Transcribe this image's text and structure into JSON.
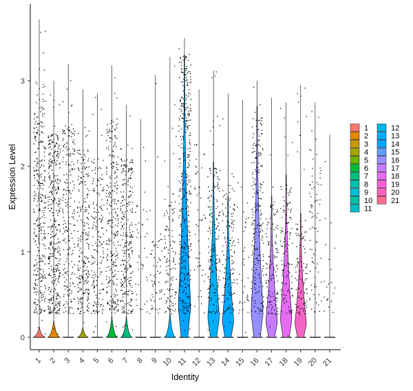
{
  "chart_data": {
    "type": "violin",
    "title": "",
    "xlabel": "Identity",
    "ylabel": "Expression Level",
    "ylim": [
      -0.2,
      3.9
    ],
    "yticks": [
      0,
      1,
      2,
      3
    ],
    "grid": false,
    "legend_position": "right",
    "categories": [
      "1",
      "2",
      "3",
      "4",
      "5",
      "6",
      "7",
      "8",
      "9",
      "10",
      "11",
      "12",
      "13",
      "14",
      "15",
      "16",
      "17",
      "18",
      "19",
      "20",
      "21"
    ],
    "series": [
      {
        "name": "1",
        "color": "#F8766D",
        "max": 3.72,
        "point_density": 0.85,
        "point_top": 2.8,
        "violin_width": 0.42,
        "violin_height": 0.12,
        "violin_shape": "low"
      },
      {
        "name": "2",
        "color": "#E58700",
        "max": 3.0,
        "point_density": 1.0,
        "point_top": 2.4,
        "violin_width": 0.43,
        "violin_height": 0.2,
        "violin_shape": "low"
      },
      {
        "name": "3",
        "color": "#C99800",
        "max": 3.2,
        "point_density": 0.55,
        "point_top": 2.5,
        "violin_width": 0.0,
        "violin_height": 0.0,
        "violin_shape": "flat"
      },
      {
        "name": "4",
        "color": "#A3A500",
        "max": 2.9,
        "point_density": 0.6,
        "point_top": 2.2,
        "violin_width": 0.35,
        "violin_height": 0.12,
        "violin_shape": "low"
      },
      {
        "name": "5",
        "color": "#6BB100",
        "max": 2.85,
        "point_density": 0.45,
        "point_top": 2.1,
        "violin_width": 0.0,
        "violin_height": 0.0,
        "violin_shape": "flat"
      },
      {
        "name": "6",
        "color": "#00BA38",
        "max": 3.18,
        "point_density": 0.7,
        "point_top": 2.6,
        "violin_width": 0.4,
        "violin_height": 0.25,
        "violin_shape": "low"
      },
      {
        "name": "7",
        "color": "#00BF7D",
        "max": 2.72,
        "point_density": 0.7,
        "point_top": 2.1,
        "violin_width": 0.4,
        "violin_height": 0.25,
        "violin_shape": "low"
      },
      {
        "name": "8",
        "color": "#00C0AF",
        "max": 2.55,
        "point_density": 0.1,
        "point_top": 1.6,
        "violin_width": 0.0,
        "violin_height": 0.0,
        "violin_shape": "flat"
      },
      {
        "name": "9",
        "color": "#00BCD8",
        "max": 3.07,
        "point_density": 0.15,
        "point_top": 1.2,
        "violin_width": 0.0,
        "violin_height": 0.0,
        "violin_shape": "flat"
      },
      {
        "name": "10",
        "color": "#00B0F6",
        "max": 3.28,
        "point_density": 0.3,
        "point_top": 1.7,
        "violin_width": 0.4,
        "violin_height": 0.3,
        "violin_shape": "low"
      },
      {
        "name": "11",
        "color": "#00A5FF",
        "max": 3.5,
        "point_density": 0.95,
        "point_top": 3.3,
        "violin_width": 0.45,
        "violin_height": 3.3,
        "violin_shape": "tall"
      },
      {
        "name": "12",
        "color": "#619CFF",
        "max": 2.9,
        "point_density": 0.12,
        "point_top": 2.3,
        "violin_width": 0.0,
        "violin_height": 0.0,
        "violin_shape": "flat"
      },
      {
        "name": "13",
        "color": "#00B0F6",
        "max": 3.12,
        "point_density": 0.45,
        "point_top": 2.0,
        "violin_width": 0.42,
        "violin_height": 2.05,
        "violin_shape": "tall"
      },
      {
        "name": "14",
        "color": "#00A9FF",
        "max": 2.85,
        "point_density": 0.35,
        "point_top": 1.8,
        "violin_width": 0.42,
        "violin_height": 1.65,
        "violin_shape": "tall"
      },
      {
        "name": "15",
        "color": "#4DA6FF",
        "max": 2.78,
        "point_density": 0.1,
        "point_top": 1.6,
        "violin_width": 0.0,
        "violin_height": 0.0,
        "violin_shape": "flat"
      },
      {
        "name": "16",
        "color": "#9590FF",
        "max": 3.0,
        "point_density": 0.55,
        "point_top": 2.6,
        "violin_width": 0.44,
        "violin_height": 2.7,
        "violin_shape": "tall"
      },
      {
        "name": "17",
        "color": "#C77CFF",
        "max": 2.8,
        "point_density": 0.3,
        "point_top": 1.6,
        "violin_width": 0.42,
        "violin_height": 1.65,
        "violin_shape": "tall"
      },
      {
        "name": "18",
        "color": "#E76BF3",
        "max": 2.75,
        "point_density": 0.3,
        "point_top": 1.8,
        "violin_width": 0.42,
        "violin_height": 1.9,
        "violin_shape": "tall"
      },
      {
        "name": "19",
        "color": "#F365C4",
        "max": 2.95,
        "point_density": 0.25,
        "point_top": 1.4,
        "violin_width": 0.42,
        "violin_height": 1.45,
        "violin_shape": "tall"
      },
      {
        "name": "20",
        "color": "#FF61C3",
        "max": 2.75,
        "point_density": 0.2,
        "point_top": 2.3,
        "violin_width": 0.0,
        "violin_height": 0.0,
        "violin_shape": "flat"
      },
      {
        "name": "21",
        "color": "#FF6C91",
        "max": 2.37,
        "point_density": 0.05,
        "point_top": 1.4,
        "violin_width": 0.0,
        "violin_height": 0.0,
        "violin_shape": "flat"
      }
    ],
    "legend_columns": [
      [
        "1",
        "2",
        "3",
        "4",
        "5",
        "6",
        "7",
        "8",
        "9",
        "10",
        "11"
      ],
      [
        "12",
        "13",
        "14",
        "15",
        "16",
        "17",
        "18",
        "19",
        "20",
        "21"
      ]
    ],
    "legend_colors": {
      "1": "#F8766D",
      "2": "#E58700",
      "3": "#C99800",
      "4": "#A3A500",
      "5": "#6BB100",
      "6": "#00BA38",
      "7": "#00BF7D",
      "8": "#00C0AF",
      "9": "#00BCD8",
      "10": "#00C1A3",
      "11": "#00BFC4",
      "12": "#00B8E7",
      "13": "#00B0F6",
      "14": "#00A5FF",
      "15": "#619CFF",
      "16": "#9590FF",
      "17": "#C77CFF",
      "18": "#E76BF3",
      "19": "#FA62DB",
      "20": "#FF62BC",
      "21": "#FF6C91"
    }
  }
}
